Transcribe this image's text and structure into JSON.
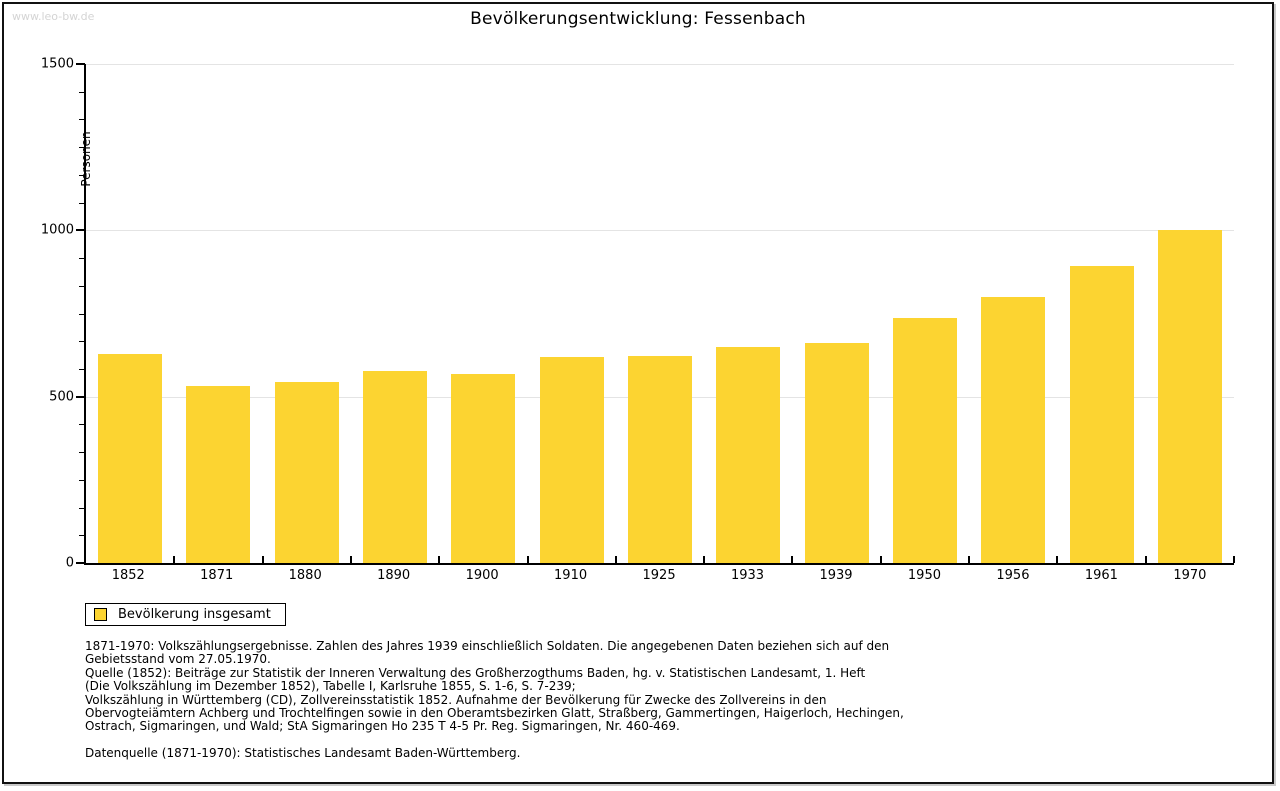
{
  "page": {
    "watermark": "www.leo-bw.de",
    "title": "Bevölkerungsentwicklung: Fessenbach"
  },
  "chart_data": {
    "type": "bar",
    "title": "Bevölkerungsentwicklung: Fessenbach",
    "xlabel": "",
    "ylabel": "Personen",
    "ylim": [
      0,
      1500
    ],
    "yticks_major": [
      0,
      500,
      1000,
      1500
    ],
    "minor_ticks_per_interval": 6,
    "grid": true,
    "legend_position": "below-left",
    "bar_color": "#FCD431",
    "categories": [
      "1852",
      "1871",
      "1880",
      "1890",
      "1900",
      "1910",
      "1925",
      "1933",
      "1939",
      "1950",
      "1956",
      "1961",
      "1970"
    ],
    "series": [
      {
        "name": "Bevölkerung insgesamt",
        "color": "#FCD431",
        "values": [
          628,
          533,
          545,
          577,
          568,
          619,
          622,
          649,
          660,
          738,
          800,
          892,
          1002
        ]
      }
    ]
  },
  "legend": {
    "label": "Bevölkerung insgesamt",
    "swatch_color": "#FCD431"
  },
  "footnotes": [
    "1871-1970: Volkszählungsergebnisse. Zahlen des Jahres 1939 einschließlich Soldaten. Die angegebenen Daten beziehen sich auf den",
    "Gebietsstand vom 27.05.1970.",
    "Quelle (1852): Beiträge zur Statistik der Inneren Verwaltung des Großherzogthums Baden, hg. v. Statistischen Landesamt, 1. Heft",
    "(Die Volkszählung im Dezember 1852), Tabelle I, Karlsruhe 1855, S. 1-6, S. 7-239;",
    "Volkszählung in Württemberg (CD), Zollvereinsstatistik 1852. Aufnahme der Bevölkerung für Zwecke des Zollvereins in den",
    "Obervogteiämtern Achberg und Trochtelfingen sowie in den Oberamtsbezirken Glatt, Straßberg, Gammertingen, Haigerloch, Hechingen,",
    "Ostrach, Sigmaringen, und Wald; StA Sigmaringen Ho 235 T 4-5 Pr. Reg. Sigmaringen, Nr. 460-469."
  ],
  "datasource": "Datenquelle (1871-1970): Statistisches Landesamt Baden-Württemberg.",
  "colors": {
    "bar": "#FCD431",
    "grid": "#e4e4e4",
    "axis": "#000000",
    "watermark": "#d4d4d4"
  }
}
